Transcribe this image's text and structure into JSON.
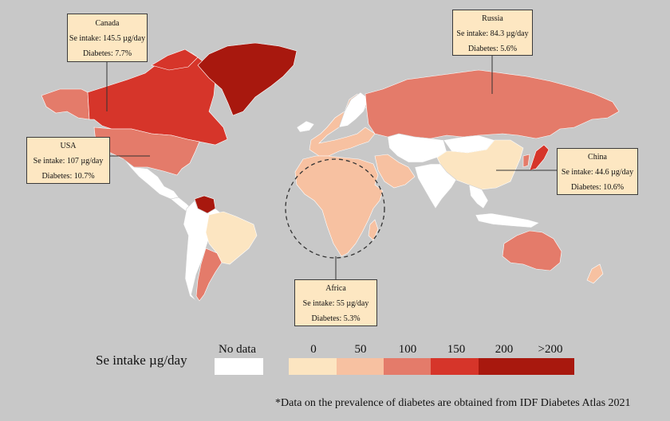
{
  "callouts": {
    "canada": {
      "name": "Canada",
      "intake": "Se intake: 145.5 µg/day",
      "diabetes": "Diabetes: 7.7%"
    },
    "russia": {
      "name": "Russia",
      "intake": "Se intake: 84.3 µg/day",
      "diabetes": "Diabetes: 5.6%"
    },
    "usa": {
      "name": "USA",
      "intake": "Se intake: 107 µg/day",
      "diabetes": "Diabetes: 10.7%"
    },
    "china": {
      "name": "China",
      "intake": "Se intake: 44.6 µg/day",
      "diabetes": "Diabetes: 10.6%"
    },
    "africa": {
      "name": "Africa",
      "intake": "Se intake: 55 µg/day",
      "diabetes": "Diabetes: 5.3%"
    }
  },
  "legend": {
    "title": "Se intake µg/day",
    "nodata_label": "No data",
    "nodata_color": "#ffffff",
    "ticks": [
      "0",
      "50",
      "100",
      "150",
      "200",
      ">200"
    ],
    "bins": [
      "#fce5c1",
      "#f7c1a1",
      "#e47b6a",
      "#d6352a",
      "#a8180e",
      "#a8180e"
    ]
  },
  "colors": {
    "background": "#c8c8c8",
    "land_default": "#f7c1a1",
    "bin1": "#fce5c1",
    "bin2": "#f7c1a1",
    "bin3": "#e47b6a",
    "bin4": "#d6352a",
    "bin5": "#a8180e",
    "nodata": "#ffffff"
  },
  "footnote": "*Data on the prevalence of diabetes are obtained from IDF Diabetes Atlas 2021"
}
